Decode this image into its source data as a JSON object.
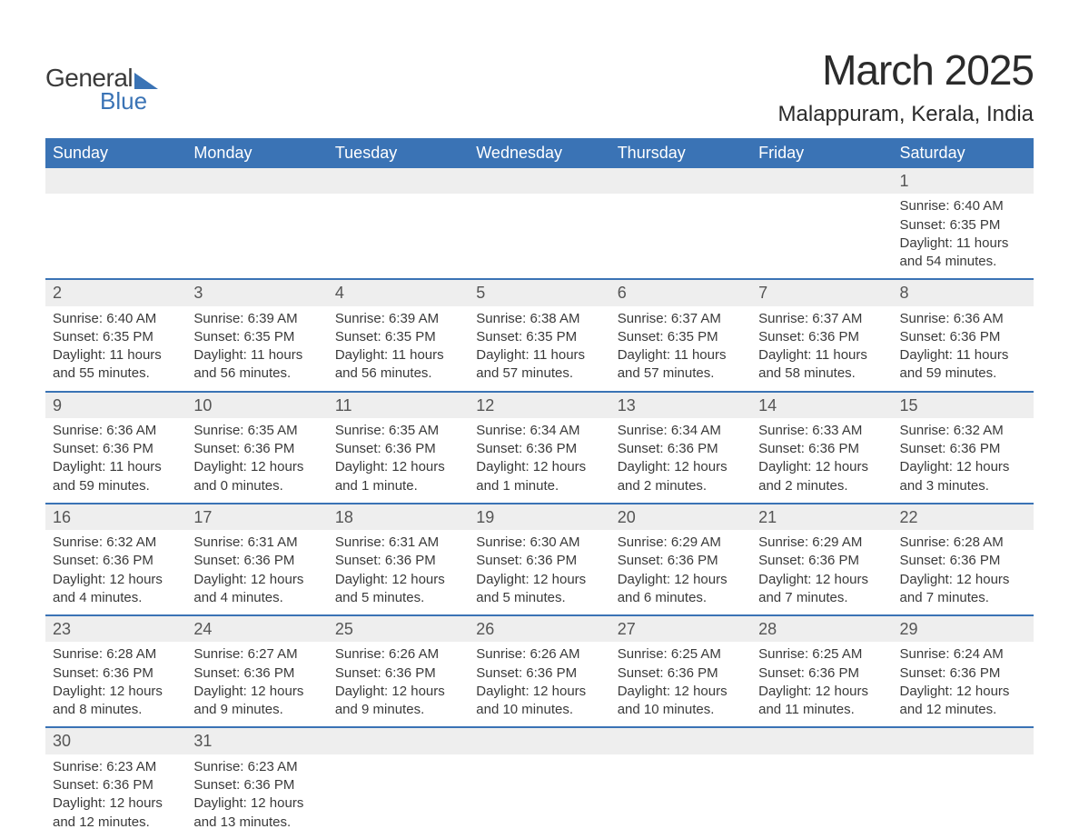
{
  "logo": {
    "word1": "General",
    "word2": "Blue"
  },
  "title": "March 2025",
  "location": "Malappuram, Kerala, India",
  "colors": {
    "header_bg": "#3a73b5",
    "header_text": "#ffffff",
    "daynum_bg": "#eeeeee",
    "row_border": "#3a73b5",
    "body_text": "#3a3a3a",
    "background": "#ffffff"
  },
  "weekdays": [
    "Sunday",
    "Monday",
    "Tuesday",
    "Wednesday",
    "Thursday",
    "Friday",
    "Saturday"
  ],
  "weeks": [
    [
      null,
      null,
      null,
      null,
      null,
      null,
      {
        "n": "1",
        "sunrise": "6:40 AM",
        "sunset": "6:35 PM",
        "daylight": "11 hours and 54 minutes."
      }
    ],
    [
      {
        "n": "2",
        "sunrise": "6:40 AM",
        "sunset": "6:35 PM",
        "daylight": "11 hours and 55 minutes."
      },
      {
        "n": "3",
        "sunrise": "6:39 AM",
        "sunset": "6:35 PM",
        "daylight": "11 hours and 56 minutes."
      },
      {
        "n": "4",
        "sunrise": "6:39 AM",
        "sunset": "6:35 PM",
        "daylight": "11 hours and 56 minutes."
      },
      {
        "n": "5",
        "sunrise": "6:38 AM",
        "sunset": "6:35 PM",
        "daylight": "11 hours and 57 minutes."
      },
      {
        "n": "6",
        "sunrise": "6:37 AM",
        "sunset": "6:35 PM",
        "daylight": "11 hours and 57 minutes."
      },
      {
        "n": "7",
        "sunrise": "6:37 AM",
        "sunset": "6:36 PM",
        "daylight": "11 hours and 58 minutes."
      },
      {
        "n": "8",
        "sunrise": "6:36 AM",
        "sunset": "6:36 PM",
        "daylight": "11 hours and 59 minutes."
      }
    ],
    [
      {
        "n": "9",
        "sunrise": "6:36 AM",
        "sunset": "6:36 PM",
        "daylight": "11 hours and 59 minutes."
      },
      {
        "n": "10",
        "sunrise": "6:35 AM",
        "sunset": "6:36 PM",
        "daylight": "12 hours and 0 minutes."
      },
      {
        "n": "11",
        "sunrise": "6:35 AM",
        "sunset": "6:36 PM",
        "daylight": "12 hours and 1 minute."
      },
      {
        "n": "12",
        "sunrise": "6:34 AM",
        "sunset": "6:36 PM",
        "daylight": "12 hours and 1 minute."
      },
      {
        "n": "13",
        "sunrise": "6:34 AM",
        "sunset": "6:36 PM",
        "daylight": "12 hours and 2 minutes."
      },
      {
        "n": "14",
        "sunrise": "6:33 AM",
        "sunset": "6:36 PM",
        "daylight": "12 hours and 2 minutes."
      },
      {
        "n": "15",
        "sunrise": "6:32 AM",
        "sunset": "6:36 PM",
        "daylight": "12 hours and 3 minutes."
      }
    ],
    [
      {
        "n": "16",
        "sunrise": "6:32 AM",
        "sunset": "6:36 PM",
        "daylight": "12 hours and 4 minutes."
      },
      {
        "n": "17",
        "sunrise": "6:31 AM",
        "sunset": "6:36 PM",
        "daylight": "12 hours and 4 minutes."
      },
      {
        "n": "18",
        "sunrise": "6:31 AM",
        "sunset": "6:36 PM",
        "daylight": "12 hours and 5 minutes."
      },
      {
        "n": "19",
        "sunrise": "6:30 AM",
        "sunset": "6:36 PM",
        "daylight": "12 hours and 5 minutes."
      },
      {
        "n": "20",
        "sunrise": "6:29 AM",
        "sunset": "6:36 PM",
        "daylight": "12 hours and 6 minutes."
      },
      {
        "n": "21",
        "sunrise": "6:29 AM",
        "sunset": "6:36 PM",
        "daylight": "12 hours and 7 minutes."
      },
      {
        "n": "22",
        "sunrise": "6:28 AM",
        "sunset": "6:36 PM",
        "daylight": "12 hours and 7 minutes."
      }
    ],
    [
      {
        "n": "23",
        "sunrise": "6:28 AM",
        "sunset": "6:36 PM",
        "daylight": "12 hours and 8 minutes."
      },
      {
        "n": "24",
        "sunrise": "6:27 AM",
        "sunset": "6:36 PM",
        "daylight": "12 hours and 9 minutes."
      },
      {
        "n": "25",
        "sunrise": "6:26 AM",
        "sunset": "6:36 PM",
        "daylight": "12 hours and 9 minutes."
      },
      {
        "n": "26",
        "sunrise": "6:26 AM",
        "sunset": "6:36 PM",
        "daylight": "12 hours and 10 minutes."
      },
      {
        "n": "27",
        "sunrise": "6:25 AM",
        "sunset": "6:36 PM",
        "daylight": "12 hours and 10 minutes."
      },
      {
        "n": "28",
        "sunrise": "6:25 AM",
        "sunset": "6:36 PM",
        "daylight": "12 hours and 11 minutes."
      },
      {
        "n": "29",
        "sunrise": "6:24 AM",
        "sunset": "6:36 PM",
        "daylight": "12 hours and 12 minutes."
      }
    ],
    [
      {
        "n": "30",
        "sunrise": "6:23 AM",
        "sunset": "6:36 PM",
        "daylight": "12 hours and 12 minutes."
      },
      {
        "n": "31",
        "sunrise": "6:23 AM",
        "sunset": "6:36 PM",
        "daylight": "12 hours and 13 minutes."
      },
      null,
      null,
      null,
      null,
      null
    ]
  ],
  "labels": {
    "sunrise": "Sunrise: ",
    "sunset": "Sunset: ",
    "daylight": "Daylight: "
  }
}
